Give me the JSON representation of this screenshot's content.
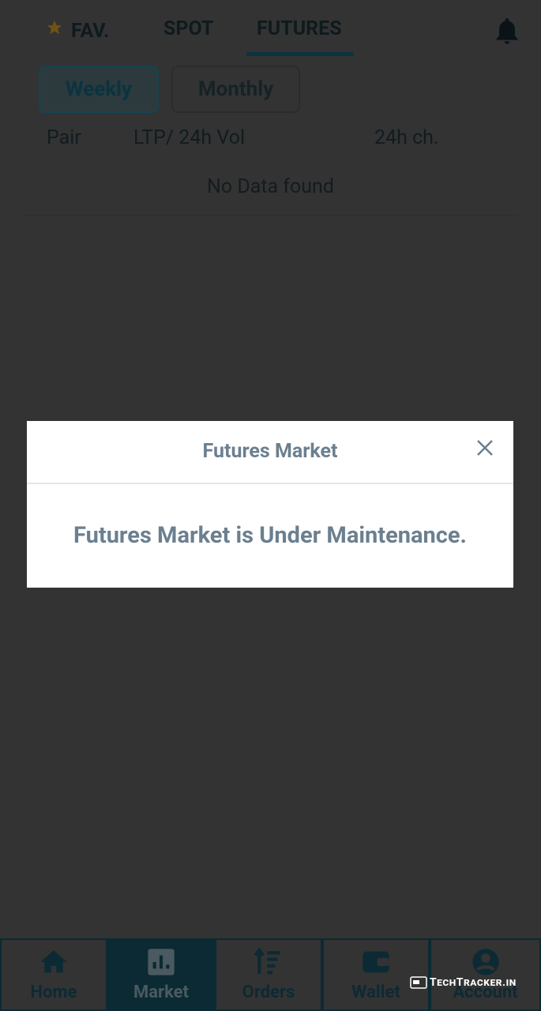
{
  "tabs": {
    "favorite": "FAV.",
    "spot": "SPOT",
    "futures": "FUTURES"
  },
  "filters": [
    "Weekly",
    "Monthly"
  ],
  "table": {
    "headers": [
      "Pair",
      "LTP/ 24h Vol",
      "24h ch."
    ],
    "empty_message": "No Data found"
  },
  "modal": {
    "title": "Futures Market",
    "message": "Futures Market is Under Maintenance."
  },
  "nav": [
    "Home",
    "Market",
    "Orders",
    "Wallet",
    "Account"
  ],
  "watermark": "TechTracker.in"
}
